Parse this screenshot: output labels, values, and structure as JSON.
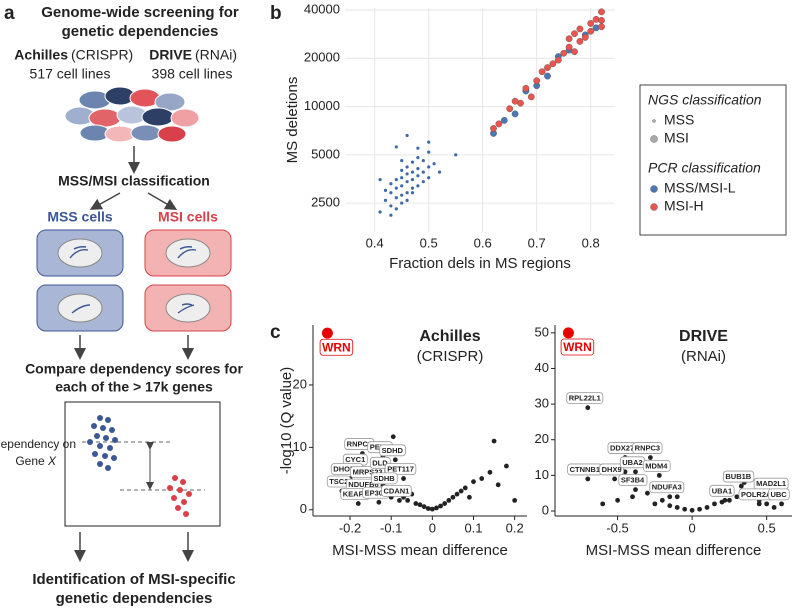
{
  "diagram": {
    "panel_a": "a",
    "panel_b": "b",
    "panel_c": "c",
    "title": [
      "Genome-wide screening for",
      "genetic dependencies"
    ],
    "screen1": {
      "name": "Achilles",
      "method": "(CRISPR)",
      "lines": "517 cell lines"
    },
    "screen2": {
      "name": "DRIVE",
      "method": "(RNAi)",
      "lines": "398 cell lines"
    },
    "classification": "MSS/MSI classification",
    "mss_cells": "MSS cells",
    "msi_cells": "MSI cells",
    "compare": [
      "Compare dependency scores for",
      "each of the > 17k genes"
    ],
    "dependency_axis": [
      "Dependency on",
      "Gene",
      "X"
    ],
    "result": [
      "Identification of MSI-specific",
      "genetic dependencies"
    ]
  },
  "chart_data": [
    {
      "type": "scatter",
      "xlabel": "Fraction dels in MS regions",
      "ylabel": "MS deletions",
      "xlim": [
        0.345,
        0.845
      ],
      "xticks": [
        0.4,
        0.5,
        0.6,
        0.7,
        0.8
      ],
      "ylim": [
        1650,
        41200
      ],
      "yticks": [
        2500,
        5000,
        10000,
        20000,
        40000
      ],
      "ylog": true,
      "grid": true,
      "legend": [
        {
          "title": "NGS classification",
          "entries": [
            {
              "label": "MSS",
              "color": "#aaaaaa",
              "size": 1.5
            },
            {
              "label": "MSI",
              "color": "#aaaaaa",
              "size": 3.5
            }
          ]
        },
        {
          "title": "PCR classification",
          "entries": [
            {
              "label": "MSS/MSI-L",
              "color": "#4a78b5",
              "size": 3.5
            },
            {
              "label": "MSI-H",
              "color": "#e8544e",
              "size": 3.5
            }
          ]
        }
      ],
      "series": [
        {
          "color": "#3d6aa8",
          "size": 1.6,
          "x": [
            0.41,
            0.42,
            0.42,
            0.43,
            0.43,
            0.43,
            0.44,
            0.44,
            0.44,
            0.44,
            0.45,
            0.45,
            0.45,
            0.45,
            0.45,
            0.46,
            0.46,
            0.46,
            0.46,
            0.46,
            0.47,
            0.47,
            0.47,
            0.47,
            0.48,
            0.48,
            0.48,
            0.48,
            0.49,
            0.49,
            0.49,
            0.5,
            0.5,
            0.5,
            0.51,
            0.44,
            0.46,
            0.47,
            0.45,
            0.48,
            0.52,
            0.55,
            0.43,
            0.41,
            0.5
          ],
          "values": [
            2200,
            2600,
            3000,
            2400,
            2900,
            3300,
            2700,
            3100,
            3500,
            2300,
            2800,
            3200,
            3600,
            4000,
            2500,
            2900,
            3400,
            3800,
            4200,
            2600,
            3100,
            3500,
            3900,
            4500,
            3200,
            3700,
            4100,
            4800,
            3400,
            3900,
            4600,
            3600,
            4200,
            5200,
            4400,
            5600,
            6600,
            2900,
            4600,
            5500,
            3900,
            5000,
            2100,
            3500,
            6000
          ]
        },
        {
          "color": "#4a78b5",
          "size": 3.2,
          "x": [
            0.62,
            0.64,
            0.66,
            0.68,
            0.7,
            0.72,
            0.74,
            0.76,
            0.79,
            0.81
          ],
          "values": [
            6800,
            8200,
            9000,
            12500,
            13500,
            15500,
            20500,
            22500,
            28000,
            31000
          ]
        },
        {
          "color": "#e8544e",
          "size": 3.2,
          "x": [
            0.62,
            0.63,
            0.65,
            0.67,
            0.69,
            0.7,
            0.71,
            0.72,
            0.73,
            0.74,
            0.75,
            0.76,
            0.76,
            0.77,
            0.77,
            0.78,
            0.78,
            0.79,
            0.8,
            0.8,
            0.81,
            0.82,
            0.82,
            0.82,
            0.66,
            0.68
          ],
          "values": [
            7300,
            7800,
            9700,
            10500,
            11500,
            14500,
            16500,
            17500,
            18500,
            19500,
            21500,
            23500,
            26500,
            22000,
            28500,
            25500,
            30500,
            27000,
            29500,
            33000,
            35000,
            31500,
            34500,
            39000,
            10800,
            13000
          ]
        }
      ]
    },
    {
      "type": "volcano",
      "title": "Achilles",
      "subtitle": "(CRISPR)",
      "xlabel": "MSI-MSS mean difference",
      "ylabel": "-log10 (Q value)",
      "xlim": [
        -0.29,
        0.23
      ],
      "xticks": [
        -0.2,
        -0.1,
        0,
        0.1,
        0.2
      ],
      "ylim": [
        -1,
        29.6
      ],
      "yticks": [
        0,
        10,
        20
      ],
      "series": [
        {
          "color": "#e60000",
          "size": 5.5,
          "x": [
            -0.255
          ],
          "values": [
            28.3
          ],
          "labels": [
            "WRN"
          ]
        },
        {
          "color": "#222222",
          "size": 2.4,
          "x": [
            -0.17,
            -0.18,
            -0.12,
            -0.09,
            -0.2,
            -0.15,
            -0.12,
            -0.07,
            -0.22,
            -0.16,
            -0.11,
            -0.18,
            -0.13,
            -0.08,
            -0.2,
            -0.15,
            -0.1,
            -0.08,
            -0.06,
            -0.05,
            -0.04,
            -0.03,
            -0.02,
            -0.01,
            0,
            0.01,
            0.02,
            0.03,
            0.04,
            0.05,
            0.06,
            0.07,
            0.08,
            0.1,
            0.12,
            0.14,
            0.15,
            0.16,
            0.18,
            0.2,
            -0.12,
            -0.09,
            -0.07,
            0.09,
            -0.095
          ],
          "values": [
            9,
            6.5,
            8.5,
            8,
            5,
            4.5,
            6,
            5,
            3,
            2.5,
            3.5,
            1,
            1.2,
            1.5,
            4,
            3,
            2,
            3.5,
            1.5,
            2.5,
            1,
            0.8,
            0.5,
            0.2,
            0.1,
            0.3,
            0.6,
            1,
            1.5,
            2,
            2.5,
            3,
            3.5,
            4.5,
            5,
            6,
            11,
            4,
            7,
            1.5,
            4,
            6,
            2,
            2,
            11.7
          ],
          "labels": [
            "RNPC3",
            "CYC1",
            "PELO",
            "SDHD",
            "DHODH",
            "MRPS23",
            "DLD",
            "PET117",
            "TSC2",
            "NDUFB6",
            "SDHB",
            "KEAP1",
            "EP300",
            "CDAN1",
            null,
            null,
            null,
            null,
            null,
            null,
            null,
            null,
            null,
            null,
            null,
            null,
            null,
            null,
            null,
            null,
            null,
            null,
            null,
            null,
            null,
            null,
            null,
            null,
            null,
            null,
            null,
            null,
            null,
            null,
            null
          ]
        }
      ]
    },
    {
      "type": "volcano",
      "title": "DRIVE",
      "subtitle": "(RNAi)",
      "xlabel": "MSI-MSS mean difference",
      "xlim": [
        -0.92,
        0.67
      ],
      "xticks": [
        -0.5,
        0,
        0.5
      ],
      "ylim": [
        -1.4,
        52.2
      ],
      "yticks": [
        0,
        10,
        20,
        30,
        40,
        50
      ],
      "series": [
        {
          "color": "#e60000",
          "size": 5.5,
          "x": [
            -0.83
          ],
          "values": [
            50
          ],
          "labels": [
            "WRN"
          ]
        },
        {
          "color": "#222222",
          "size": 2.4,
          "x": [
            -0.7,
            -0.45,
            -0.28,
            -0.7,
            -0.52,
            -0.38,
            -0.22,
            -0.38,
            -0.15,
            0.33,
            0.55,
            0.22,
            0.45,
            0.6,
            -0.6,
            -0.5,
            -0.4,
            -0.3,
            -0.25,
            -0.2,
            -0.15,
            -0.1,
            -0.05,
            0,
            0.05,
            0.1,
            0.15,
            0.2,
            0.25,
            0.3,
            0.4,
            0.45,
            0.5,
            0.55,
            -0.35,
            -0.45,
            -0.2,
            -0.1,
            0.2,
            0.35
          ],
          "values": [
            29,
            15,
            15,
            9,
            9,
            11,
            10,
            6,
            4,
            7,
            5,
            3,
            2,
            2,
            2,
            3,
            4,
            5,
            2,
            3,
            1.5,
            1,
            0.5,
            0.2,
            0.5,
            1,
            2,
            2.5,
            3,
            4,
            5,
            3,
            2,
            1,
            8,
            11,
            6,
            4,
            6,
            8
          ],
          "labels": [
            "RPL22L1",
            "DDX27",
            "RNPC3",
            "CTNNB1",
            "DHX9",
            "UBA2",
            "MDM4",
            "SF3B4",
            "NDUFA3",
            "BUB1B",
            "MAD2L1",
            "UBA1",
            "POLR2A",
            "UBC",
            null,
            null,
            null,
            null,
            null,
            null,
            null,
            null,
            null,
            null,
            null,
            null,
            null,
            null,
            null,
            null,
            null,
            null,
            null,
            null,
            null,
            null,
            null,
            null,
            null,
            null
          ]
        }
      ]
    }
  ]
}
